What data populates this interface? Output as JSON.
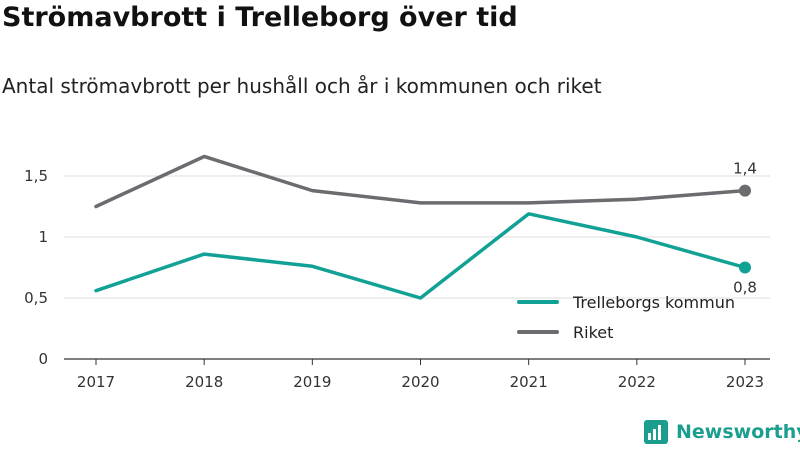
{
  "title": "Strömavbrott i Trelleborg över tid",
  "subtitle": "Antal strömavbrott per hushåll och år i kommunen och riket",
  "brand": "Newsworthy",
  "colors": {
    "kommun": "#12a195",
    "riket": "#6b6b70",
    "brand": "#1c9e8f"
  },
  "chart_data": {
    "type": "line",
    "x": [
      "2017",
      "2018",
      "2019",
      "2020",
      "2021",
      "2022",
      "2023"
    ],
    "y_ticks": [
      "0",
      "0,5",
      "1",
      "1,5"
    ],
    "y_tick_values": [
      0,
      0.5,
      1,
      1.5
    ],
    "ylim": [
      0,
      1.75
    ],
    "grid": true,
    "legend_position": "bottom-right",
    "series": [
      {
        "name": "Trelleborgs kommun",
        "color": "#12a195",
        "values": [
          0.56,
          0.86,
          0.76,
          0.5,
          1.19,
          1.0,
          0.75
        ],
        "end_label": "0,8"
      },
      {
        "name": "Riket",
        "color": "#6b6b70",
        "values": [
          1.25,
          1.66,
          1.38,
          1.28,
          1.28,
          1.31,
          1.38
        ],
        "end_label": "1,4"
      }
    ]
  }
}
